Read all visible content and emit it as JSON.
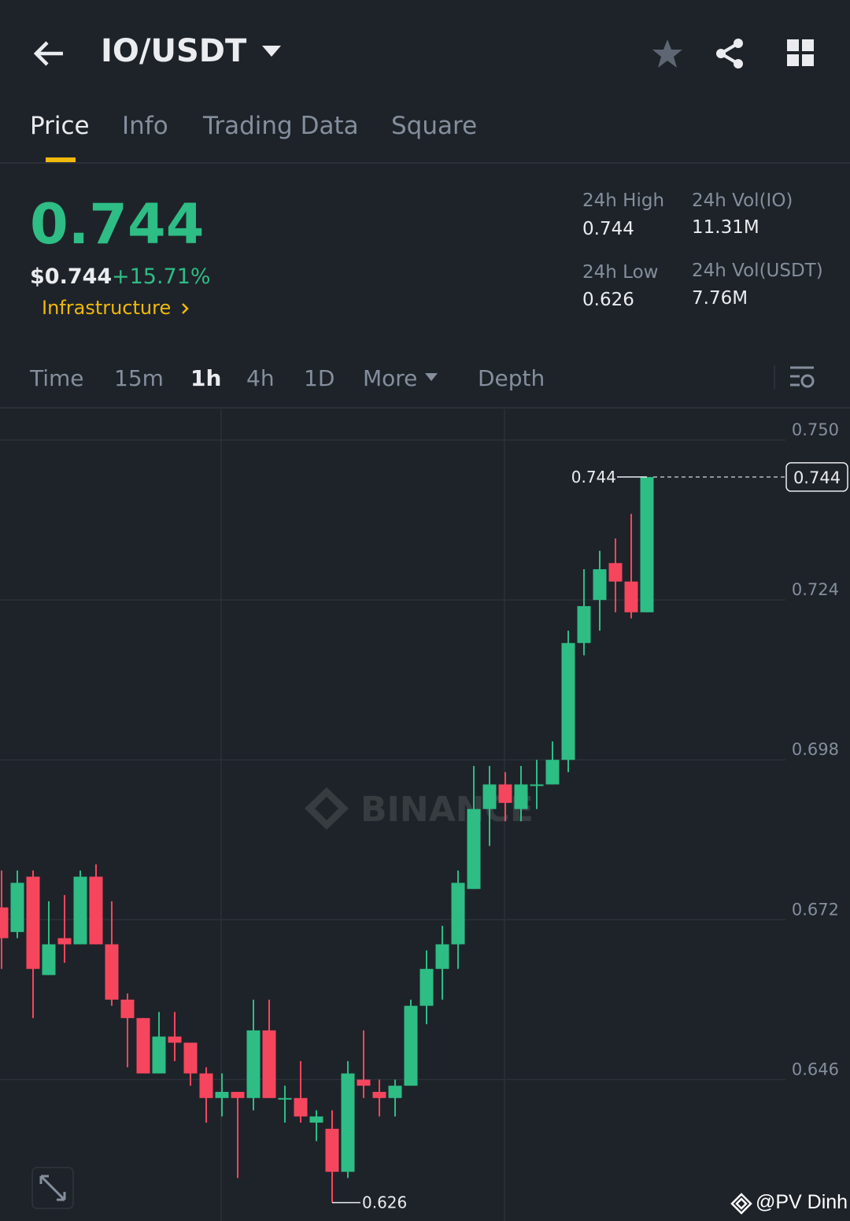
{
  "header": {
    "pair": "IO/USDT"
  },
  "tabs": [
    "Price",
    "Info",
    "Trading Data",
    "Square"
  ],
  "price": {
    "last": "0.744",
    "usd": "$0.744",
    "change": "+15.71%",
    "sector": "Infrastructure"
  },
  "stats": [
    {
      "label": "24h High",
      "value": "0.744"
    },
    {
      "label": "24h Vol(IO)",
      "value": "11.31M"
    },
    {
      "label": "24h Low",
      "value": "0.626"
    },
    {
      "label": "24h Vol(USDT)",
      "value": "7.76M"
    }
  ],
  "intervals": [
    "Time",
    "15m",
    "1h",
    "4h",
    "1D",
    "More",
    "Depth"
  ],
  "chart_data": {
    "type": "candlestick",
    "up_color": "#2ebd85",
    "down_color": "#f6465d",
    "open": [
      0.674,
      0.67,
      0.679,
      0.663,
      0.669,
      0.668,
      0.679,
      0.668,
      0.659,
      0.656,
      0.647,
      0.653,
      0.652,
      0.647,
      0.643,
      0.644,
      0.643,
      0.654,
      0.643,
      0.643,
      0.639,
      0.638,
      0.631,
      0.646,
      0.644,
      0.643,
      0.645,
      0.658,
      0.664,
      0.668,
      0.677,
      0.69,
      0.694,
      0.69,
      0.694,
      0.694,
      0.698,
      0.717,
      0.724,
      0.73,
      0.727,
      0.722
    ],
    "high": [
      0.68,
      0.68,
      0.68,
      0.675,
      0.676,
      0.68,
      0.681,
      0.675,
      0.66,
      0.656,
      0.657,
      0.657,
      0.652,
      0.648,
      0.647,
      0.644,
      0.659,
      0.659,
      0.645,
      0.649,
      0.641,
      0.641,
      0.649,
      0.654,
      0.646,
      0.646,
      0.659,
      0.667,
      0.671,
      0.68,
      0.697,
      0.697,
      0.696,
      0.697,
      0.698,
      0.701,
      0.719,
      0.729,
      0.732,
      0.734,
      0.738,
      0.744
    ],
    "low": [
      0.664,
      0.669,
      0.656,
      0.663,
      0.665,
      0.668,
      0.668,
      0.658,
      0.648,
      0.647,
      0.647,
      0.649,
      0.645,
      0.639,
      0.64,
      0.63,
      0.641,
      0.643,
      0.639,
      0.639,
      0.636,
      0.626,
      0.63,
      0.643,
      0.64,
      0.64,
      0.645,
      0.655,
      0.659,
      0.664,
      0.677,
      0.684,
      0.688,
      0.688,
      0.69,
      0.694,
      0.696,
      0.715,
      0.719,
      0.722,
      0.721,
      0.722
    ],
    "close": [
      0.669,
      0.678,
      0.664,
      0.668,
      0.668,
      0.679,
      0.668,
      0.659,
      0.656,
      0.647,
      0.653,
      0.652,
      0.647,
      0.643,
      0.644,
      0.643,
      0.654,
      0.643,
      0.643,
      0.64,
      0.64,
      0.631,
      0.647,
      0.645,
      0.643,
      0.645,
      0.658,
      0.664,
      0.668,
      0.678,
      0.69,
      0.694,
      0.691,
      0.694,
      0.694,
      0.698,
      0.717,
      0.723,
      0.729,
      0.727,
      0.722,
      0.744
    ],
    "ylim": [
      0.623,
      0.755
    ],
    "yticks": [
      {
        "value": 0.75,
        "label": "0.750"
      },
      0.724,
      0.698,
      0.672,
      0.646
    ],
    "grid": true,
    "max_label": 0.744,
    "min_label": 0.626,
    "last_price": 0.744
  },
  "watermark_logo": "BINANCE",
  "credit": "@PV Dinh"
}
